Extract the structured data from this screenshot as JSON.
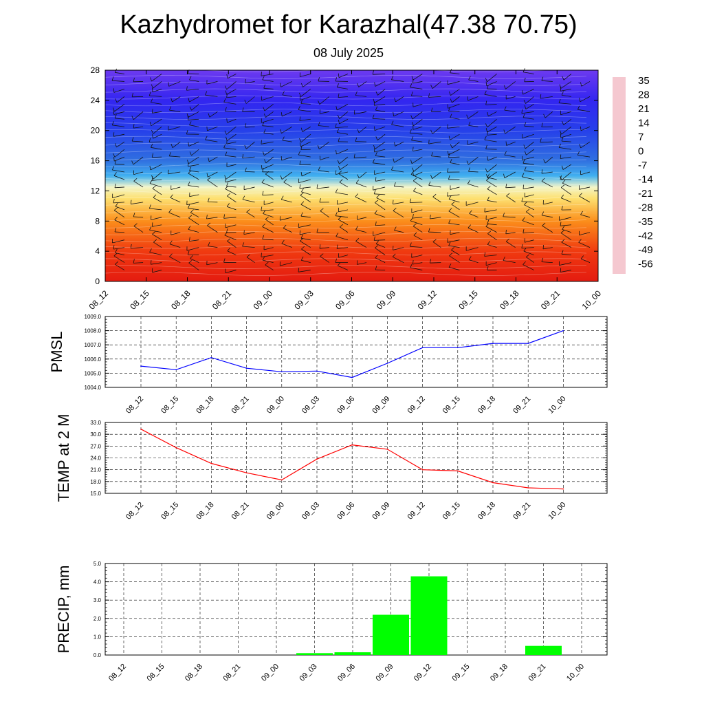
{
  "header": {
    "title": "Kazhydromet for Karazhal(47.38 70.75)",
    "subtitle": "08 July 2025"
  },
  "time_labels": [
    "08_12",
    "08_15",
    "08_18",
    "08_21",
    "09_00",
    "09_03",
    "09_06",
    "09_09",
    "09_12",
    "09_15",
    "09_18",
    "09_21",
    "10_00"
  ],
  "chart_data": [
    {
      "type": "heatmap",
      "name": "cross-section",
      "x": [
        "08_12",
        "08_15",
        "08_18",
        "08_21",
        "09_00",
        "09_03",
        "09_06",
        "09_09",
        "09_12",
        "09_15",
        "09_18",
        "09_21",
        "10_00"
      ],
      "ylim": [
        0,
        28
      ],
      "yticks": [
        0,
        4,
        8,
        12,
        16,
        20,
        24,
        28
      ],
      "colorbar_labels": [
        "35",
        "28",
        "21",
        "14",
        "7",
        "0",
        "-7",
        "-14",
        "-21",
        "-28",
        "-35",
        "-42",
        "-49",
        "-56"
      ],
      "colorbar_colors": [
        "#f5c8d0",
        "#e01010",
        "#f03a10",
        "#f86a10",
        "#fca020",
        "#fde070",
        "#fff8c0",
        "#a8e4f8",
        "#40b0f0",
        "#3070e0",
        "#2848e8",
        "#2020f0",
        "#4010f0",
        "#8040f0"
      ],
      "level_temperature": [
        {
          "y": 0,
          "value": 28
        },
        {
          "y": 4,
          "value": 22
        },
        {
          "y": 8,
          "value": 12
        },
        {
          "y": 11,
          "value": 3
        },
        {
          "y": 12.5,
          "value": -6
        },
        {
          "y": 14,
          "value": -20
        },
        {
          "y": 16,
          "value": -30
        },
        {
          "y": 20,
          "value": -42
        },
        {
          "y": 24,
          "value": -52
        },
        {
          "y": 28,
          "value": -58
        }
      ],
      "wind_barbs": true
    },
    {
      "type": "line",
      "name": "pmsl",
      "ylabel": "PMSL",
      "x": [
        "08_12",
        "08_15",
        "08_18",
        "08_21",
        "09_00",
        "09_03",
        "09_06",
        "09_09",
        "09_12",
        "09_15",
        "09_18",
        "09_21",
        "10_00"
      ],
      "values": [
        1005.5,
        1005.25,
        1006.1,
        1005.35,
        1005.1,
        1005.15,
        1004.7,
        1005.7,
        1006.8,
        1006.8,
        1007.1,
        1007.1,
        1008.0
      ],
      "ylim": [
        1004.0,
        1009.0
      ],
      "yticks": [
        "1004.0",
        "1005.0",
        "1006.0",
        "1007.0",
        "1008.0",
        "1009.0"
      ],
      "color": "#0000ff"
    },
    {
      "type": "line",
      "name": "temp",
      "ylabel": "TEMP at 2 M",
      "x": [
        "08_12",
        "08_15",
        "08_18",
        "08_21",
        "09_00",
        "09_03",
        "09_06",
        "09_09",
        "09_12",
        "09_15",
        "09_18",
        "09_21",
        "10_00"
      ],
      "values": [
        31.3,
        26.6,
        22.6,
        20.2,
        18.4,
        23.7,
        27.3,
        26.2,
        21.0,
        20.7,
        17.7,
        16.4,
        16.1
      ],
      "ylim": [
        15.0,
        33.0
      ],
      "yticks": [
        "15.0",
        "18.0",
        "21.0",
        "24.0",
        "27.0",
        "30.0",
        "33.0"
      ],
      "color": "#ff0000"
    },
    {
      "type": "bar",
      "name": "precip",
      "ylabel": "PRECIP, mm",
      "x": [
        "08_12",
        "08_15",
        "08_18",
        "08_21",
        "09_00",
        "09_03",
        "09_06",
        "09_09",
        "09_12",
        "09_15",
        "09_18",
        "09_21",
        "10_00"
      ],
      "values": [
        0,
        0,
        0,
        0,
        0,
        0.1,
        0.15,
        2.2,
        4.3,
        0,
        0,
        0.5,
        0
      ],
      "ylim": [
        0,
        5.0
      ],
      "yticks": [
        "0.0",
        "1.0",
        "2.0",
        "3.0",
        "4.0",
        "5.0"
      ],
      "color": "#00ff00"
    }
  ]
}
